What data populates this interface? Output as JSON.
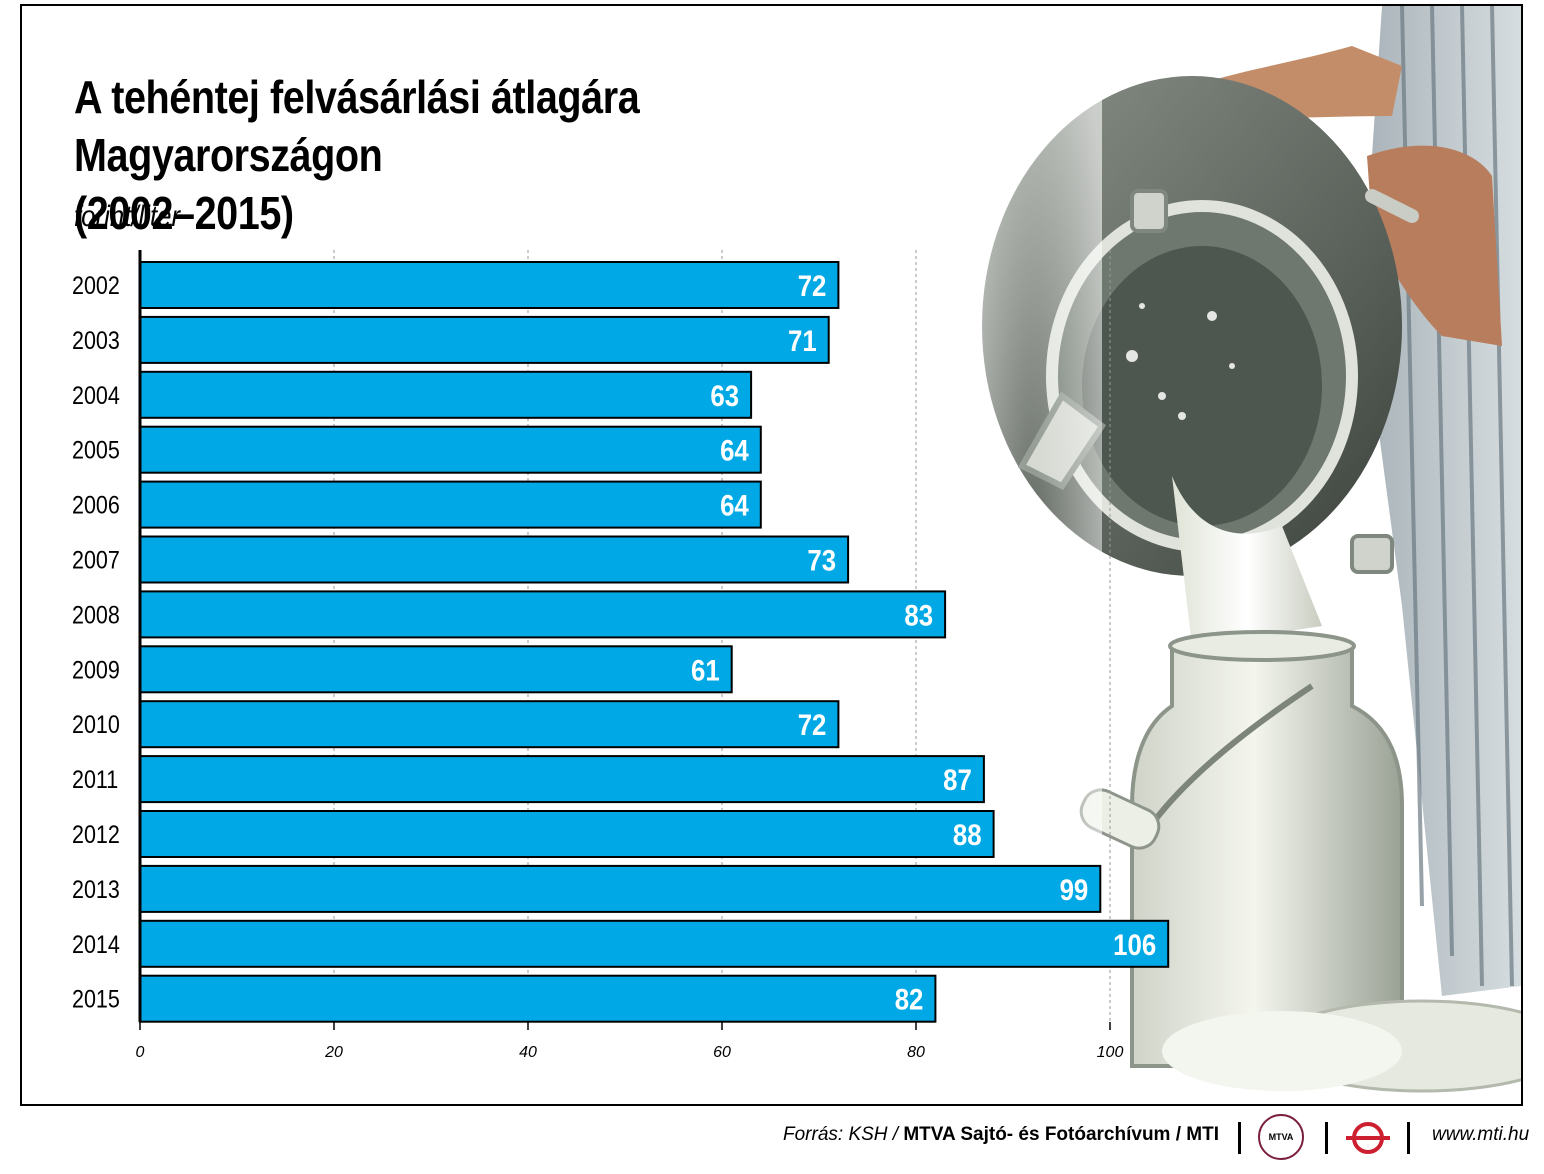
{
  "colors": {
    "bar": "#00a9e6",
    "bar_border": "#000000",
    "value_label": "#ffffff",
    "grid": "#9a9a9a"
  },
  "chart_data": {
    "type": "bar",
    "orientation": "horizontal",
    "title": "A tehéntej felvásárlási átlagára Magyarországon (2002–2015)",
    "title_lines": [
      "A tehéntej felvásárlási átlagára Magyarországon",
      "(2002–2015)"
    ],
    "unit": "forint/liter",
    "categories": [
      "2002",
      "2003",
      "2004",
      "2005",
      "2006",
      "2007",
      "2008",
      "2009",
      "2010",
      "2011",
      "2012",
      "2013",
      "2014",
      "2015"
    ],
    "values": [
      72,
      71,
      63,
      64,
      64,
      73,
      83,
      61,
      72,
      87,
      88,
      99,
      106,
      82
    ],
    "xlim": [
      0,
      106
    ],
    "xticks": [
      0,
      20,
      40,
      60,
      80,
      100
    ],
    "grid": true,
    "data_labels": true
  },
  "footer": {
    "source_prefix": "Forrás: KSH / ",
    "source_main": "MTVA Sajtó- és Fotóarchívum / MTI",
    "mtva_logo": "MTVA",
    "mti_logo_icon": "mti-logo-icon",
    "website": "www.mti.hu"
  }
}
